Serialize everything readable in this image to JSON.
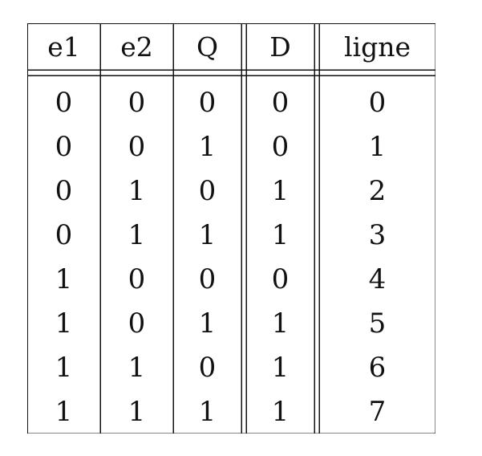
{
  "truth_table": {
    "columns": [
      "e1",
      "e2",
      "Q",
      "D",
      "ligne"
    ],
    "rows": [
      [
        "0",
        "0",
        "0",
        "0",
        "0"
      ],
      [
        "0",
        "0",
        "1",
        "0",
        "1"
      ],
      [
        "0",
        "1",
        "0",
        "1",
        "2"
      ],
      [
        "0",
        "1",
        "1",
        "1",
        "3"
      ],
      [
        "1",
        "0",
        "0",
        "0",
        "4"
      ],
      [
        "1",
        "0",
        "1",
        "1",
        "5"
      ],
      [
        "1",
        "1",
        "0",
        "1",
        "6"
      ],
      [
        "1",
        "1",
        "1",
        "1",
        "7"
      ]
    ]
  }
}
